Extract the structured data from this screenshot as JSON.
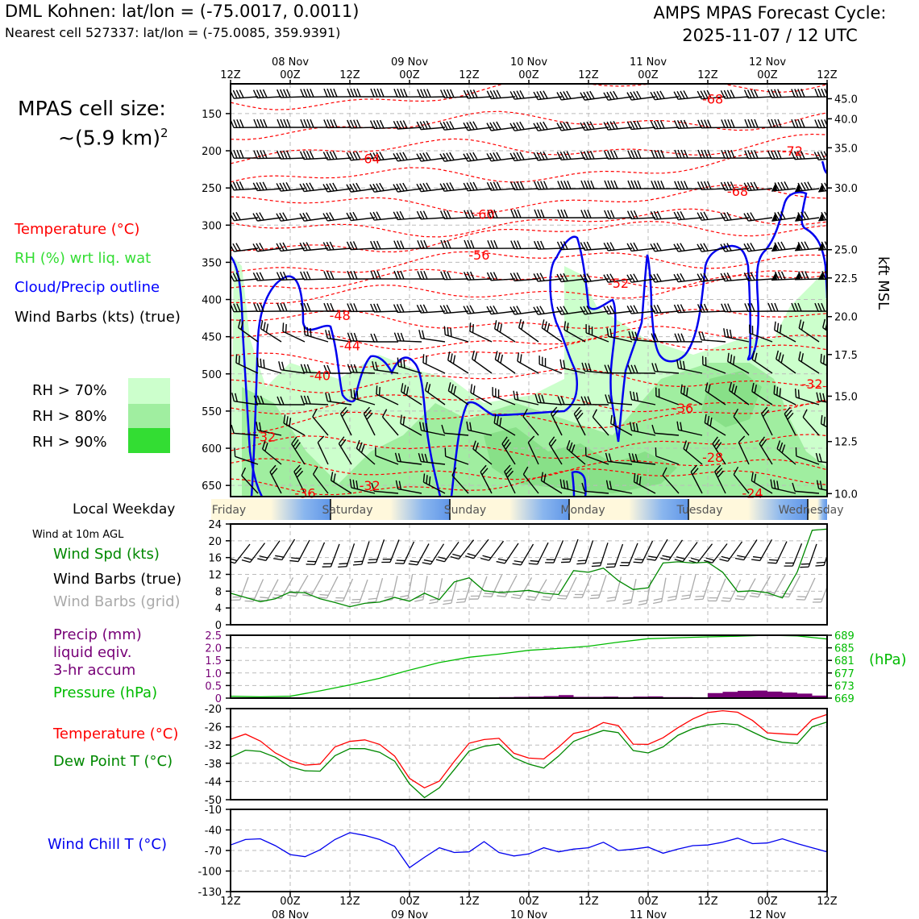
{
  "header": {
    "station": "DML Kohnen: lat/lon = (-75.0017, 0.0011)",
    "nearest": "Nearest cell 527337: lat/lon = (-75.0085, 359.9391)",
    "cycle_line1": "AMPS MPAS Forecast Cycle:",
    "cycle_line2": "2025-11-07 / 12 UTC"
  },
  "cell_size": {
    "line1": "MPAS cell size:",
    "line2_prefix": "~(5.9 km)",
    "line2_sup": "2"
  },
  "legends": {
    "temperature": "Temperature (°C)",
    "rh": "RH (%) wrt liq. wat",
    "cloud": "Cloud/Precip outline",
    "barbs": "Wind Barbs (kts) (true)",
    "rh70": "RH > 70%",
    "rh80": "RH > 80%",
    "rh90": "RH > 90%",
    "local_weekday": "Local Weekday",
    "wind10m": "Wind at 10m AGL",
    "wspd": "Wind Spd (kts)",
    "wbarbs_true": "Wind Barbs (true)",
    "wbarbs_grid": "Wind Barbs (grid)",
    "precip1": "Precip (mm)",
    "precip2": "liquid eqiv.",
    "precip3": "3-hr accum",
    "pressure": "Pressure (hPa)",
    "temp2": "Temperature (°C)",
    "dew": "Dew Point T (°C)",
    "windchill": "Wind Chill T (°C)",
    "kft": "kft MSL",
    "hpa": "(hPa)"
  },
  "colors": {
    "temperature": "#ff0000",
    "rh": "#33dd33",
    "cloud": "#0000ff",
    "precip": "#770077",
    "pressure": "#00bb00",
    "dew": "#008800",
    "windchill": "#0000ee",
    "grid_barbs": "#aaaaaa",
    "rh70": "#ccffcc",
    "rh80": "#a0eea0",
    "rh90": "#33dd33"
  },
  "time_axis": {
    "top_dates": [
      "08 Nov",
      "09 Nov",
      "10 Nov",
      "11 Nov",
      "12 Nov"
    ],
    "hour_labels": [
      "12Z",
      "00Z",
      "12Z",
      "00Z",
      "12Z",
      "00Z",
      "12Z",
      "00Z",
      "12Z",
      "00Z",
      "12Z"
    ],
    "bottom_dates": [
      "08 Nov",
      "09 Nov",
      "10 Nov",
      "11 Nov",
      "12 Nov"
    ],
    "weekdays": [
      "Friday",
      "Saturday",
      "Sunday",
      "Monday",
      "Tuesday",
      "Wednesday"
    ]
  },
  "chart_data": [
    {
      "type": "heatmap",
      "name": "cross-section",
      "x_range_hours": [
        0,
        120
      ],
      "yaxis_hpa_ticks": [
        150,
        200,
        250,
        300,
        350,
        400,
        450,
        500,
        550,
        600,
        650
      ],
      "yaxis_hpa_range": [
        110,
        665
      ],
      "yaxis_kft_ticks": [
        "45.0",
        "40.0",
        "35.0",
        "30.0",
        "25.0",
        "22.5",
        "20.0",
        "17.5",
        "15.0",
        "12.5",
        "10.0"
      ],
      "yaxis_kft_at_hpa": [
        130,
        157,
        196,
        250,
        333,
        371,
        423,
        474,
        530,
        591,
        661
      ],
      "temperature_labels": [
        {
          "text": "-68",
          "h": 97,
          "p": 130
        },
        {
          "text": "-72",
          "h": 113,
          "p": 200
        },
        {
          "text": "-68",
          "h": 102,
          "p": 254
        },
        {
          "text": "-64",
          "h": 28,
          "p": 210
        },
        {
          "text": "-60",
          "h": 51,
          "p": 285
        },
        {
          "text": "-56",
          "h": 50,
          "p": 340
        },
        {
          "text": "-52",
          "h": 78,
          "p": 378
        },
        {
          "text": "-48",
          "h": 22,
          "p": 421
        },
        {
          "text": "-44",
          "h": 24,
          "p": 462
        },
        {
          "text": "-40",
          "h": 18,
          "p": 502
        },
        {
          "text": "-36",
          "h": 91,
          "p": 546
        },
        {
          "text": "-32",
          "h": 117,
          "p": 513
        },
        {
          "text": "-32",
          "h": 7,
          "p": 584
        },
        {
          "text": "-28",
          "h": 97,
          "p": 612
        },
        {
          "text": "-32",
          "h": 28,
          "p": 650
        },
        {
          "text": "-36",
          "h": 15,
          "p": 660
        },
        {
          "text": "-24",
          "h": 105,
          "p": 660
        }
      ]
    },
    {
      "type": "line",
      "name": "wind-speed-10m",
      "ylabel": "Wind Spd (kts)",
      "ylim": [
        0,
        24
      ],
      "yticks": [
        0,
        4,
        8,
        12,
        16,
        20,
        24
      ],
      "x_hours": [
        0,
        3,
        6,
        9,
        12,
        15,
        18,
        21,
        24,
        27,
        30,
        33,
        36,
        39,
        42,
        45,
        48,
        51,
        54,
        57,
        60,
        63,
        66,
        69,
        72,
        75,
        78,
        81,
        84,
        87,
        90,
        93,
        96,
        99,
        102,
        105,
        108,
        111,
        114,
        117,
        120
      ],
      "values": [
        7.5,
        6.5,
        5.5,
        6.2,
        7.8,
        7.6,
        6.2,
        5.3,
        4.3,
        5.1,
        5.4,
        6.5,
        5.6,
        7.5,
        6.0,
        10.2,
        11.2,
        8.1,
        7.7,
        7.9,
        8.2,
        7.5,
        7.2,
        12.9,
        12.5,
        13.5,
        10.5,
        8.4,
        8.8,
        14.7,
        15.0,
        14.7,
        14.9,
        12.5,
        7.9,
        8.1,
        7.6,
        6.4,
        12.6,
        22.5,
        22.8
      ]
    },
    {
      "type": "bar",
      "name": "precip-3hr",
      "ylabel": "Precip (mm)",
      "ylim": [
        0,
        2.5
      ],
      "yticks": [
        0,
        0.5,
        1.0,
        1.5,
        2.0,
        2.5
      ],
      "x_hours": [
        0,
        3,
        6,
        9,
        12,
        15,
        18,
        21,
        24,
        27,
        30,
        33,
        36,
        39,
        42,
        45,
        48,
        51,
        54,
        57,
        60,
        63,
        66,
        69,
        72,
        75,
        78,
        81,
        84,
        87,
        90,
        93,
        96,
        99,
        102,
        105,
        108,
        111,
        114,
        117
      ],
      "values": [
        0.02,
        0.02,
        0.01,
        0.01,
        0.01,
        0.01,
        0.01,
        0.01,
        0.01,
        0.01,
        0.01,
        0.01,
        0.01,
        0.01,
        0.02,
        0.03,
        0.03,
        0.03,
        0.04,
        0.05,
        0.06,
        0.08,
        0.12,
        0.05,
        0.05,
        0.06,
        0.04,
        0.06,
        0.07,
        0.04,
        0.04,
        0.03,
        0.2,
        0.25,
        0.29,
        0.3,
        0.26,
        0.22,
        0.18,
        0.1
      ]
    },
    {
      "type": "line",
      "name": "pressure",
      "ylabel": "Pressure (hPa)",
      "ylim": [
        669,
        689
      ],
      "yticks": [
        669,
        673,
        677,
        681,
        685,
        689
      ],
      "x_hours": [
        0,
        6,
        12,
        18,
        24,
        30,
        36,
        42,
        48,
        54,
        60,
        66,
        72,
        78,
        84,
        90,
        96,
        102,
        108,
        114,
        120
      ],
      "values": [
        669.6,
        669.4,
        669.6,
        671.3,
        673.2,
        675.3,
        677.9,
        680.3,
        682.0,
        683.0,
        684.2,
        684.8,
        685.5,
        686.8,
        687.9,
        688.2,
        688.5,
        688.7,
        689.0,
        688.8,
        687.8
      ]
    },
    {
      "type": "line",
      "name": "temperature-dewpoint",
      "ylim": [
        -50,
        -20
      ],
      "yticks": [
        -20,
        -26,
        -32,
        -38,
        -44,
        -50
      ],
      "x_hours": [
        0,
        3,
        6,
        9,
        12,
        15,
        18,
        21,
        24,
        27,
        30,
        33,
        36,
        39,
        42,
        45,
        48,
        51,
        54,
        57,
        60,
        63,
        66,
        69,
        72,
        75,
        78,
        81,
        84,
        87,
        90,
        93,
        96,
        99,
        102,
        105,
        108,
        111,
        114,
        117,
        120
      ],
      "series": [
        {
          "name": "Temperature (°C)",
          "values": [
            -30.1,
            -28.4,
            -30.7,
            -34.6,
            -37.1,
            -38.6,
            -38.3,
            -32.6,
            -30.8,
            -30.3,
            -31.8,
            -35.6,
            -43.0,
            -46.1,
            -43.9,
            -37.4,
            -31.4,
            -30.2,
            -29.8,
            -34.7,
            -36.3,
            -36.6,
            -32.7,
            -28.2,
            -27.1,
            -24.6,
            -25.6,
            -31.7,
            -31.8,
            -29.6,
            -26.3,
            -23.4,
            -21.3,
            -20.7,
            -21.2,
            -23.9,
            -28.0,
            -28.3,
            -28.6,
            -23.6,
            -21.9
          ]
        },
        {
          "name": "Dew Point T (°C)",
          "values": [
            -36.0,
            -33.7,
            -34.1,
            -36.0,
            -39.2,
            -40.5,
            -40.6,
            -35.5,
            -33.2,
            -33.2,
            -34.4,
            -37.3,
            -44.8,
            -49.3,
            -46.1,
            -40.1,
            -34.0,
            -32.4,
            -31.7,
            -36.2,
            -38.3,
            -39.6,
            -35.6,
            -30.8,
            -28.9,
            -27.2,
            -27.9,
            -33.8,
            -34.6,
            -32.6,
            -28.8,
            -26.6,
            -25.4,
            -24.9,
            -25.3,
            -27.7,
            -30.0,
            -31.1,
            -31.5,
            -26.0,
            -24.4
          ]
        }
      ]
    },
    {
      "type": "line",
      "name": "wind-chill",
      "ylabel": "Wind Chill T (°C)",
      "ylim": [
        -130,
        -10
      ],
      "yticks": [
        -10,
        -40,
        -70,
        -100,
        -130
      ],
      "x_hours": [
        0,
        3,
        6,
        9,
        12,
        15,
        18,
        21,
        24,
        27,
        30,
        33,
        36,
        39,
        42,
        45,
        48,
        51,
        54,
        57,
        60,
        63,
        66,
        69,
        72,
        75,
        78,
        81,
        84,
        87,
        90,
        93,
        96,
        99,
        102,
        105,
        108,
        111,
        114,
        117,
        120
      ],
      "values": [
        -62,
        -54,
        -53,
        -63,
        -76,
        -79,
        -69,
        -54,
        -44,
        -48,
        -54,
        -64,
        -95,
        -80,
        -66,
        -73,
        -72,
        -57,
        -73,
        -78,
        -75,
        -66,
        -72,
        -68,
        -66,
        -58,
        -70,
        -68,
        -65,
        -74,
        -68,
        -63,
        -62,
        -58,
        -52,
        -60,
        -59,
        -53,
        -60,
        -66,
        -72
      ]
    }
  ]
}
